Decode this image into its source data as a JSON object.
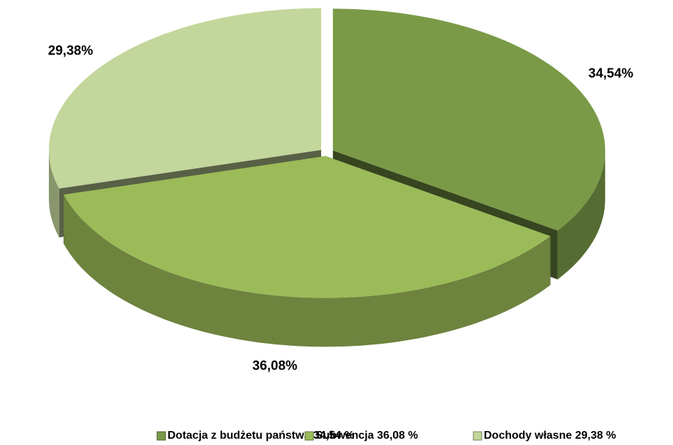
{
  "chart_data": {
    "type": "pie",
    "categories": [
      "Dotacja z budżetu państwa 34,54 %",
      "Subwencja 36,08 %",
      "Dochody własne 29,38 %"
    ],
    "values": [
      34.54,
      36.08,
      29.38
    ],
    "value_labels": [
      "34,54%",
      "36,08%",
      "29,38%"
    ],
    "colors": [
      "#7a9a47",
      "#9bbb59",
      "#c3d69b"
    ],
    "legend": "bottom"
  }
}
